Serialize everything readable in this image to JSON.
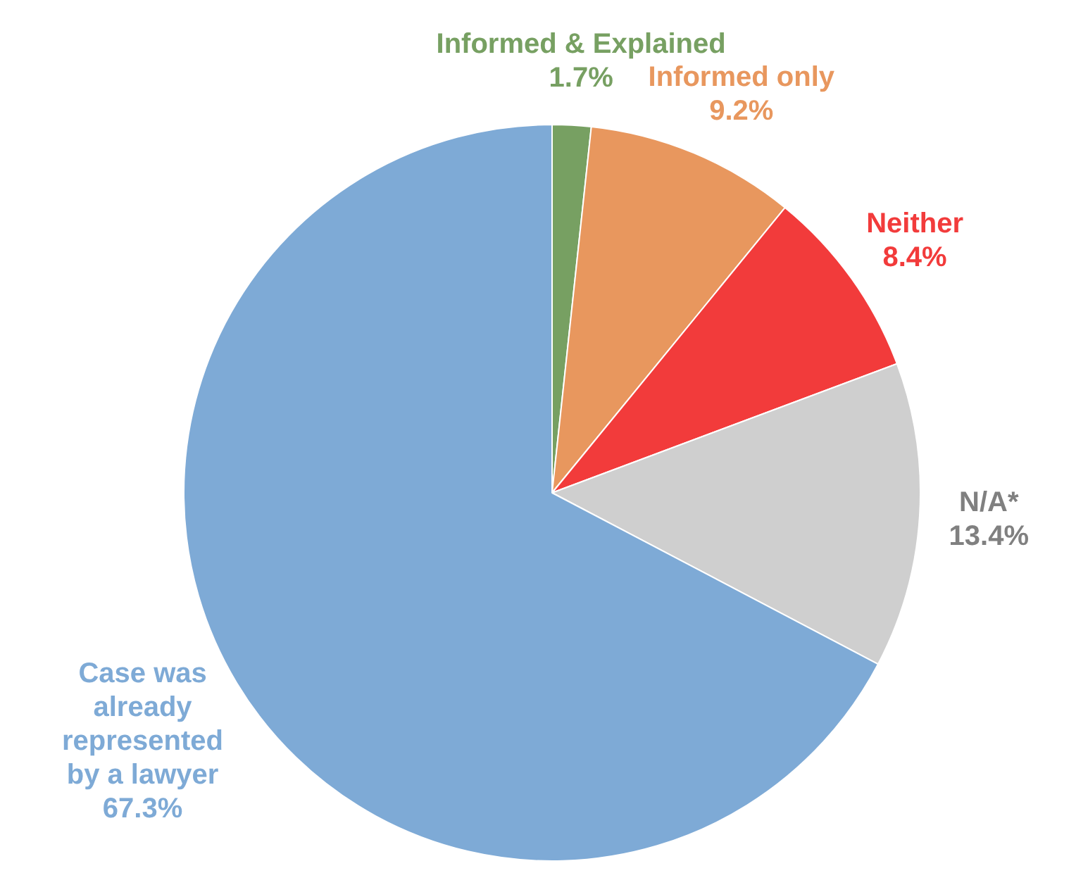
{
  "chart_data": {
    "type": "pie",
    "categories": [
      "Informed & Explained",
      "Informed only",
      "Neither",
      "N/A*",
      "Case was already represented by a lawyer"
    ],
    "values": [
      1.7,
      9.2,
      8.4,
      13.4,
      67.3
    ],
    "colors": [
      "#77a062",
      "#e8975e",
      "#f23b3b",
      "#cfcfcf",
      "#7eaad6"
    ],
    "value_labels": [
      "1.7%",
      "9.2%",
      "8.4%",
      "13.4%",
      "67.3%"
    ],
    "legend": false
  }
}
